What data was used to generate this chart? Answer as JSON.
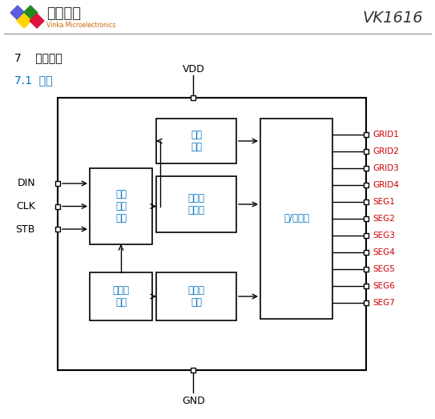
{
  "title": "VK1616",
  "section_title": "7    功能说明",
  "subsection_title": "7.1  框图",
  "logo_text": "永嘉微电",
  "logo_sub": "Vinka Microelectronics",
  "bg_color": "#ffffff",
  "blue_text_color": "#0070c0",
  "orange_text_color": "#cc6600",
  "red_text_color": "#cc0000",
  "vdd_label": "VDD",
  "gnd_label": "GND",
  "block_labels": {
    "control": "控制\n模块",
    "serial": "串行\n数据\n端口",
    "display": "显示存\n储模块",
    "driver": "段/位驱动",
    "oscillator": "内置振\n荡器",
    "timing": "时序发\n生器"
  },
  "input_labels": [
    "DIN",
    "CLK",
    "STB"
  ],
  "output_labels": [
    "GRID1",
    "GRID2",
    "GRID3",
    "GRID4",
    "SEG1",
    "SEG2",
    "SEG3",
    "SEG4",
    "SEG5",
    "SEG6",
    "SEG7"
  ],
  "diamond_colors": [
    "#5b5be0",
    "#228b22",
    "#ffd700",
    "#dc143c"
  ]
}
